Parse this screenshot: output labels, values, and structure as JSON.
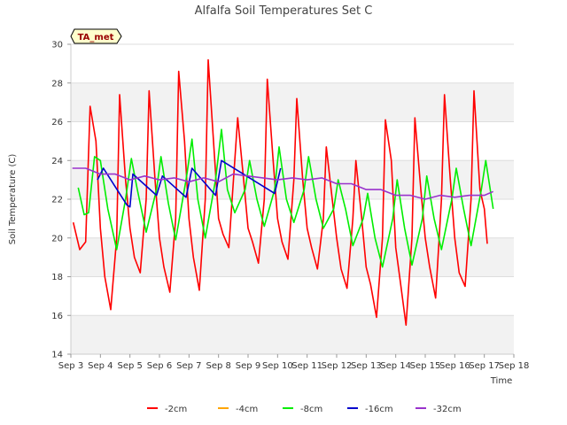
{
  "chart_data": {
    "type": "line",
    "title": "Alfalfa Soil Temperatures Set C",
    "xlabel": "Time",
    "ylabel": "Soil Temperature (C)",
    "badge": "TA_met",
    "ylim": [
      14,
      30
    ],
    "xlim": [
      3,
      18
    ],
    "yticks": [
      "14",
      "16",
      "18",
      "20",
      "22",
      "24",
      "26",
      "28",
      "30"
    ],
    "xticks": [
      "Sep 3",
      "Sep 4",
      "Sep 5",
      "Sep 6",
      "Sep 7",
      "Sep 8",
      "Sep 9",
      "Sep 10",
      "Sep 11",
      "Sep 12",
      "Sep 13",
      "Sep 14",
      "Sep 15",
      "Sep 16",
      "Sep 17",
      "Sep 18"
    ],
    "x_unit": "day of September",
    "grid": "horizontal-bands",
    "legend_position": "bottom",
    "colors": {
      "-2cm": "#ff0000",
      "-4cm": "#ffa500",
      "-8cm": "#00ee00",
      "-16cm": "#0000cc",
      "-32cm": "#9933cc",
      "badge_bg": "#ffffcc"
    },
    "series": [
      {
        "name": "-2cm",
        "color": "#ff0000",
        "x": [
          3.08,
          3.3,
          3.5,
          3.65,
          3.85,
          4.0,
          4.15,
          4.35,
          4.55,
          4.65,
          4.85,
          5.0,
          5.15,
          5.35,
          5.55,
          5.65,
          5.85,
          6.0,
          6.15,
          6.35,
          6.55,
          6.65,
          6.85,
          7.0,
          7.15,
          7.35,
          7.55,
          7.65,
          7.85,
          8.0,
          8.15,
          8.35,
          8.55,
          8.65,
          8.85,
          9.0,
          9.15,
          9.35,
          9.55,
          9.65,
          9.85,
          10.0,
          10.15,
          10.35,
          10.55,
          10.65,
          10.85,
          11.0,
          11.15,
          11.35,
          11.55,
          11.65,
          11.85,
          12.0,
          12.15,
          12.35,
          12.55,
          12.65,
          12.85,
          13.0,
          13.15,
          13.35,
          13.55,
          13.65,
          13.85,
          14.0,
          14.15,
          14.35,
          14.55,
          14.65,
          14.85,
          15.0,
          15.15,
          15.35,
          15.55,
          15.65,
          15.85,
          16.0,
          16.15,
          16.35,
          16.55,
          16.65,
          16.85,
          17.0,
          17.1
        ],
        "values": [
          20.8,
          19.4,
          19.8,
          26.8,
          25.0,
          20.5,
          18.0,
          16.3,
          20.0,
          27.4,
          23.0,
          20.5,
          19.0,
          18.2,
          22.0,
          27.6,
          23.0,
          20.0,
          18.5,
          17.2,
          21.0,
          28.6,
          25.0,
          21.0,
          19.0,
          17.3,
          22.0,
          29.2,
          24.5,
          21.0,
          20.2,
          19.5,
          24.0,
          26.2,
          23.0,
          20.5,
          19.8,
          18.7,
          22.0,
          28.2,
          24.0,
          21.0,
          19.8,
          18.9,
          23.0,
          27.2,
          23.0,
          20.5,
          19.5,
          18.4,
          21.0,
          24.7,
          22.0,
          20.0,
          18.4,
          17.4,
          21.0,
          24.0,
          21.0,
          18.5,
          17.6,
          15.9,
          20.0,
          26.1,
          24.0,
          19.5,
          17.8,
          15.5,
          20.0,
          26.2,
          22.5,
          20.0,
          18.5,
          16.9,
          22.0,
          27.4,
          23.0,
          20.0,
          18.2,
          17.5,
          22.0,
          27.6,
          22.5,
          21.5,
          19.7
        ]
      },
      {
        "name": "-4cm",
        "color": "#ffa500",
        "x": [],
        "values": []
      },
      {
        "name": "-8cm",
        "color": "#00ee00",
        "x": [
          3.25,
          3.45,
          3.6,
          3.8,
          4.0,
          4.25,
          4.55,
          4.85,
          5.05,
          5.25,
          5.55,
          5.9,
          6.05,
          6.3,
          6.55,
          6.9,
          7.1,
          7.3,
          7.55,
          7.9,
          8.1,
          8.3,
          8.55,
          8.9,
          9.05,
          9.3,
          9.55,
          9.9,
          10.05,
          10.3,
          10.55,
          10.9,
          11.05,
          11.3,
          11.55,
          11.9,
          12.05,
          12.3,
          12.55,
          12.9,
          13.05,
          13.3,
          13.55,
          13.9,
          14.05,
          14.3,
          14.55,
          14.9,
          15.05,
          15.3,
          15.55,
          15.9,
          16.05,
          16.3,
          16.55,
          16.9,
          17.05,
          17.3
        ],
        "values": [
          22.6,
          21.2,
          21.3,
          24.2,
          24.0,
          21.5,
          19.4,
          22.0,
          24.1,
          22.5,
          20.3,
          22.5,
          24.2,
          21.8,
          19.9,
          23.0,
          25.1,
          22.0,
          20.0,
          23.0,
          25.6,
          22.5,
          21.3,
          22.5,
          24.0,
          22.0,
          20.6,
          22.5,
          24.7,
          22.0,
          20.8,
          22.5,
          24.2,
          22.0,
          20.5,
          21.5,
          23.0,
          21.5,
          19.6,
          21.0,
          22.3,
          20.0,
          18.5,
          21.0,
          23.0,
          20.5,
          18.6,
          21.0,
          23.2,
          21.0,
          19.4,
          22.0,
          23.6,
          21.5,
          19.6,
          22.5,
          24.0,
          21.5
        ]
      },
      {
        "name": "-16cm",
        "color": "#0000cc",
        "x": [
          3.9,
          4.1,
          4.9,
          5.0,
          5.1,
          5.9,
          6.1,
          6.9,
          7.1,
          7.9,
          8.1,
          9.9,
          10.1
        ],
        "values": [
          23.0,
          23.6,
          21.7,
          21.6,
          23.3,
          22.2,
          23.2,
          22.1,
          23.6,
          22.2,
          24.0,
          22.3,
          23.6
        ]
      },
      {
        "name": "-32cm",
        "color": "#9933cc",
        "x": [
          3.05,
          3.5,
          4.0,
          4.5,
          5.0,
          5.5,
          6.0,
          6.5,
          7.0,
          7.5,
          8.0,
          8.5,
          9.0,
          9.5,
          10.0,
          10.5,
          11.0,
          11.5,
          12.0,
          12.5,
          13.0,
          13.5,
          14.0,
          14.5,
          15.0,
          15.5,
          16.0,
          16.5,
          17.0,
          17.3
        ],
        "values": [
          23.6,
          23.6,
          23.3,
          23.3,
          23.0,
          23.2,
          23.0,
          23.1,
          22.9,
          23.1,
          22.9,
          23.3,
          23.2,
          23.1,
          23.0,
          23.1,
          23.0,
          23.1,
          22.8,
          22.8,
          22.5,
          22.5,
          22.2,
          22.2,
          22.0,
          22.2,
          22.1,
          22.2,
          22.2,
          22.4
        ]
      }
    ]
  }
}
